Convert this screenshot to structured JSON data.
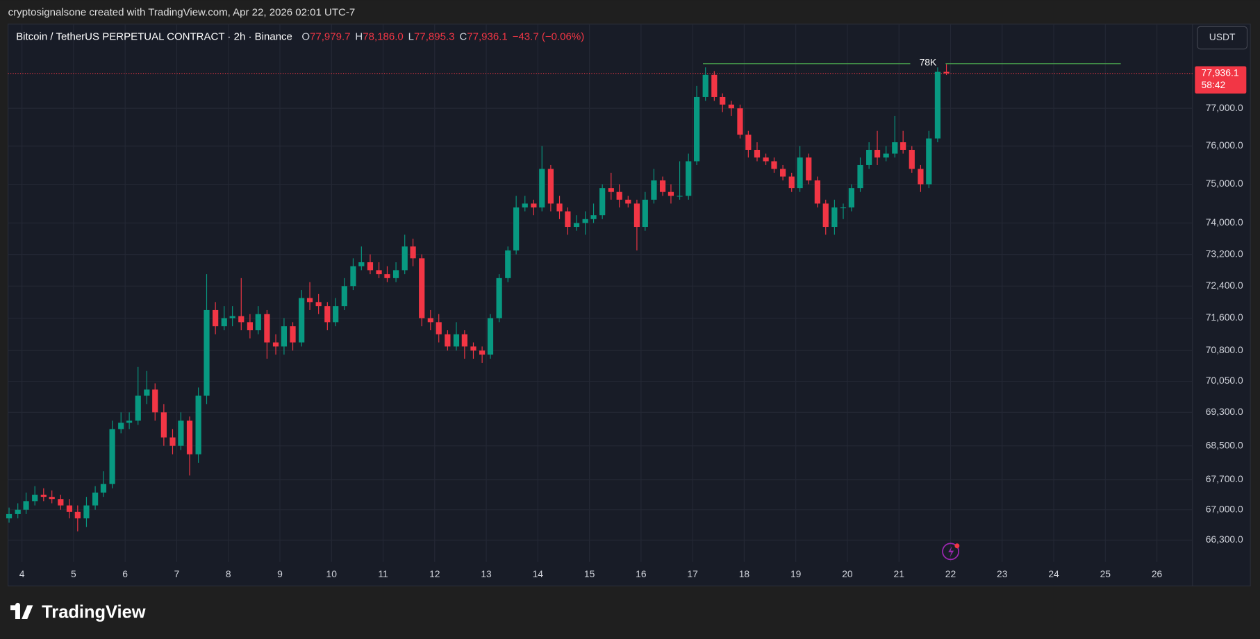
{
  "header": {
    "watermark": "cryptosignalsone created with TradingView.com, Apr 22, 2026 02:01 UTC-7",
    "symbol": "Bitcoin / TetherUS PERPETUAL CONTRACT · 2h · Binance",
    "ohlc": [
      {
        "key": "O",
        "value": "77,979.7"
      },
      {
        "key": "H",
        "value": "78,186.0"
      },
      {
        "key": "L",
        "value": "77,895.3"
      },
      {
        "key": "C",
        "value": "77,936.1"
      }
    ],
    "change": "−43.7 (−0.06%)",
    "currency": "USDT",
    "brand": "TradingView"
  },
  "chart_data": {
    "type": "candlestick",
    "log": true,
    "grid": true,
    "up_color": "#089981",
    "down_color": "#f23645",
    "xlim": [
      3.73,
      26.69
    ],
    "xticks": [
      4,
      5,
      6,
      7,
      8,
      9,
      10,
      11,
      12,
      13,
      14,
      15,
      16,
      17,
      18,
      19,
      20,
      21,
      22,
      23,
      24,
      25,
      26
    ],
    "ylim": [
      65800,
      79280
    ],
    "yticks": [
      {
        "value": 66300,
        "label": "66,300.0"
      },
      {
        "value": 67000,
        "label": "67,000.0"
      },
      {
        "value": 67700,
        "label": "67,700.0"
      },
      {
        "value": 68500,
        "label": "68,500.0"
      },
      {
        "value": 69300,
        "label": "69,300.0"
      },
      {
        "value": 70050,
        "label": "70,050.0"
      },
      {
        "value": 70800,
        "label": "70,800.0"
      },
      {
        "value": 71600,
        "label": "71,600.0"
      },
      {
        "value": 72400,
        "label": "72,400.0"
      },
      {
        "value": 73200,
        "label": "73,200.0"
      },
      {
        "value": 74000,
        "label": "74,000.0"
      },
      {
        "value": 75000,
        "label": "75,000.0"
      },
      {
        "value": 76000,
        "label": "76,000.0"
      },
      {
        "value": 77000,
        "label": "77,000.0"
      }
    ],
    "x": [
      3.75,
      3.92,
      4.08,
      4.25,
      4.42,
      4.58,
      4.75,
      4.92,
      5.08,
      5.25,
      5.42,
      5.58,
      5.75,
      5.92,
      6.08,
      6.25,
      6.42,
      6.58,
      6.75,
      6.92,
      7.08,
      7.25,
      7.42,
      7.58,
      7.75,
      7.92,
      8.08,
      8.25,
      8.42,
      8.58,
      8.75,
      8.92,
      9.08,
      9.25,
      9.42,
      9.58,
      9.75,
      9.92,
      10.08,
      10.25,
      10.42,
      10.58,
      10.75,
      10.92,
      11.08,
      11.25,
      11.42,
      11.58,
      11.75,
      11.92,
      12.08,
      12.25,
      12.42,
      12.58,
      12.75,
      12.92,
      13.08,
      13.25,
      13.42,
      13.58,
      13.75,
      13.92,
      14.08,
      14.25,
      14.42,
      14.58,
      14.75,
      14.92,
      15.08,
      15.25,
      15.42,
      15.58,
      15.75,
      15.92,
      16.08,
      16.25,
      16.42,
      16.58,
      16.75,
      16.92,
      17.08,
      17.25,
      17.42,
      17.58,
      17.75,
      17.92,
      18.08,
      18.25,
      18.42,
      18.58,
      18.75,
      18.92,
      19.08,
      19.25,
      19.42,
      19.58,
      19.75,
      19.92,
      20.08,
      20.25,
      20.42,
      20.58,
      20.75,
      20.92,
      21.08,
      21.25,
      21.42,
      21.58,
      21.75,
      21.92
    ],
    "open": [
      66800,
      66900,
      67000,
      67200,
      67350,
      67300,
      67250,
      67100,
      66950,
      66800,
      67100,
      67400,
      67600,
      68900,
      69050,
      69100,
      69700,
      69850,
      69300,
      68700,
      68500,
      69100,
      68300,
      69700,
      71800,
      71400,
      71600,
      71650,
      71500,
      71300,
      71700,
      71000,
      70900,
      71400,
      71000,
      72100,
      72000,
      71900,
      71500,
      71900,
      72400,
      72900,
      73000,
      72800,
      72700,
      72600,
      72800,
      73400,
      73100,
      71600,
      71500,
      71200,
      70900,
      71200,
      70900,
      70800,
      70700,
      71600,
      72600,
      73300,
      74400,
      74500,
      74400,
      75400,
      74500,
      74300,
      73900,
      74000,
      74100,
      74200,
      74900,
      74800,
      74600,
      74500,
      73900,
      74600,
      75100,
      74800,
      74700,
      74700,
      75600,
      77300,
      77900,
      77300,
      77100,
      77000,
      76300,
      75900,
      75700,
      75600,
      75400,
      75200,
      74900,
      75700,
      75100,
      74500,
      73900,
      74400,
      74400,
      74900,
      75500,
      75900,
      75700,
      75800,
      76100,
      75900,
      75400,
      75000,
      76200,
      77979.7
    ],
    "high": [
      67050,
      67150,
      67400,
      67550,
      67500,
      67450,
      67350,
      67250,
      67100,
      67300,
      67550,
      67900,
      69100,
      69300,
      69300,
      70400,
      70300,
      70000,
      69500,
      68900,
      69300,
      69200,
      69900,
      72700,
      72000,
      71900,
      71900,
      72600,
      71700,
      71900,
      71800,
      71200,
      71600,
      71500,
      72300,
      72500,
      72200,
      72000,
      72100,
      72600,
      73100,
      73400,
      73200,
      73000,
      72900,
      73000,
      73700,
      73600,
      73200,
      71800,
      71700,
      71300,
      71500,
      71300,
      71000,
      70900,
      71700,
      72700,
      73400,
      74700,
      74700,
      74600,
      76000,
      75500,
      74700,
      74400,
      74200,
      74300,
      74500,
      75000,
      75300,
      75000,
      74700,
      74600,
      74800,
      75400,
      75200,
      75000,
      75600,
      75800,
      77600,
      78100,
      78000,
      77400,
      77200,
      77100,
      76400,
      76100,
      75800,
      75700,
      75500,
      75300,
      76000,
      75800,
      75200,
      74600,
      74600,
      74500,
      75000,
      75700,
      76100,
      76400,
      76000,
      76800,
      76400,
      76000,
      75500,
      76400,
      78100,
      78186
    ],
    "low": [
      66700,
      66800,
      66900,
      67100,
      67200,
      67150,
      67000,
      66800,
      66500,
      66600,
      67000,
      67300,
      67500,
      68800,
      68900,
      69000,
      69500,
      69100,
      68500,
      68300,
      68400,
      67800,
      68100,
      69500,
      71200,
      71300,
      71400,
      71300,
      71100,
      71200,
      70600,
      70700,
      70700,
      70800,
      70900,
      71800,
      71700,
      71300,
      71400,
      71800,
      72300,
      72800,
      72700,
      72600,
      72500,
      72500,
      72700,
      72900,
      71400,
      71300,
      71000,
      70800,
      70800,
      70600,
      70600,
      70500,
      70600,
      71500,
      72500,
      73200,
      74300,
      74200,
      74300,
      74300,
      74100,
      73700,
      73800,
      73700,
      74000,
      74100,
      74600,
      74400,
      74400,
      73300,
      73800,
      74500,
      74700,
      74500,
      74600,
      74600,
      75500,
      77200,
      77200,
      76900,
      76800,
      76200,
      75700,
      75600,
      75500,
      75300,
      75100,
      74800,
      74800,
      75000,
      74400,
      73700,
      73700,
      74100,
      74300,
      74800,
      75400,
      75500,
      75600,
      75700,
      75800,
      75300,
      74800,
      74900,
      76100,
      77895.3
    ],
    "close": [
      66900,
      67000,
      67200,
      67350,
      67300,
      67250,
      67100,
      66950,
      66800,
      67100,
      67400,
      67600,
      68900,
      69050,
      69100,
      69700,
      69850,
      69300,
      68700,
      68500,
      69100,
      68300,
      69700,
      71800,
      71400,
      71600,
      71650,
      71500,
      71300,
      71700,
      71000,
      70900,
      71400,
      71000,
      72100,
      72000,
      71900,
      71500,
      71900,
      72400,
      72900,
      73000,
      72800,
      72700,
      72600,
      72800,
      73400,
      73100,
      71600,
      71500,
      71200,
      70900,
      71200,
      70900,
      70800,
      70700,
      71600,
      72600,
      73300,
      74400,
      74500,
      74400,
      75400,
      74500,
      74300,
      73900,
      74000,
      74100,
      74200,
      74900,
      74800,
      74600,
      74500,
      73900,
      74600,
      75100,
      74800,
      74700,
      74700,
      75600,
      77300,
      77900,
      77300,
      77100,
      77000,
      76300,
      75900,
      75700,
      75600,
      75400,
      75200,
      74900,
      75700,
      75100,
      74500,
      73900,
      74400,
      74400,
      74900,
      75500,
      75900,
      75700,
      75800,
      76100,
      75900,
      75400,
      75000,
      76200,
      77979.7,
      77936.1
    ],
    "hline": {
      "label": "78K",
      "value": 78200,
      "x": [
        17.2,
        25.3
      ],
      "color": "#4caf50"
    },
    "last_price": {
      "value": 77936.1,
      "label": "77,936.1",
      "countdown": "58:42",
      "color": "#f23645"
    }
  }
}
